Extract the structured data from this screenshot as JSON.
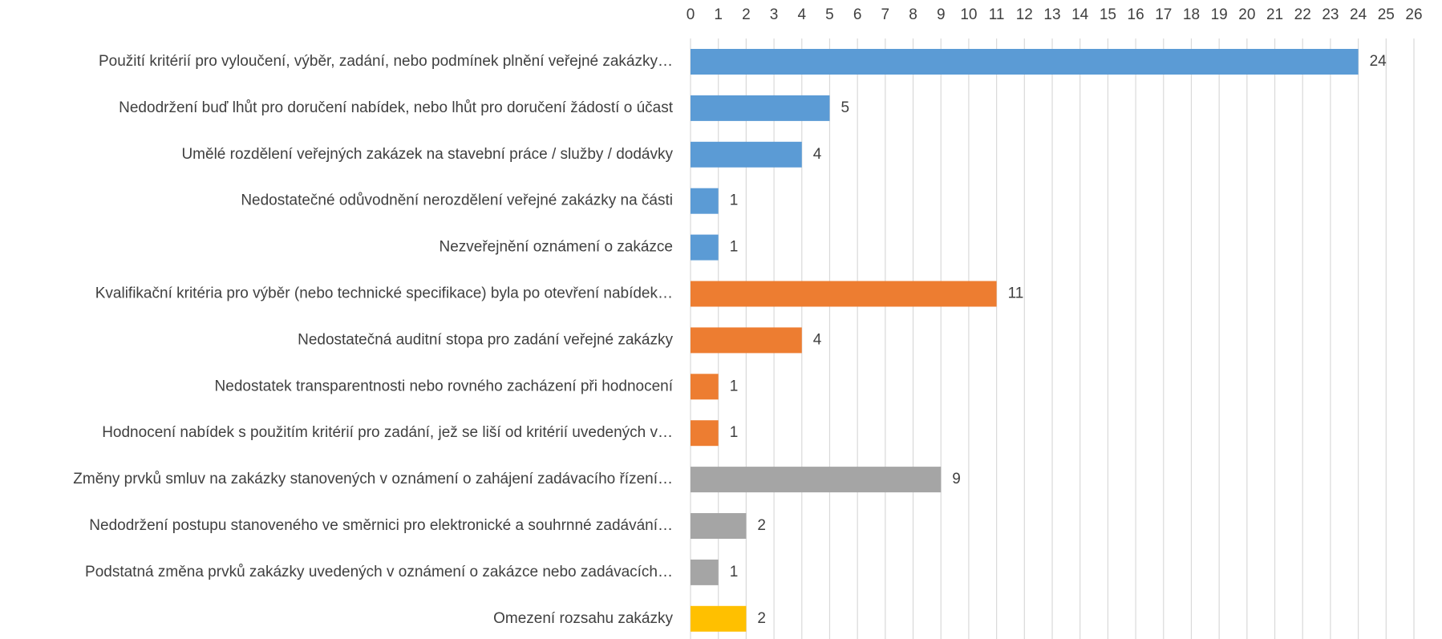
{
  "chart_data": {
    "type": "bar",
    "orientation": "horizontal",
    "categories": [
      "Použití kritérií pro vyloučení, výběr, zadání, nebo podmínek plnění veřejné zakázky…",
      "Nedodržení buď lhůt pro doručení nabídek, nebo lhůt pro doručení žádostí o účast",
      "Umělé rozdělení veřejných zakázek na stavební práce / služby / dodávky",
      "Nedostatečné odůvodnění nerozdělení veřejné zakázky na části",
      "Nezveřejnění oznámení o zakázce",
      "Kvalifikační kritéria pro výběr (nebo technické specifikace) byla po otevření nabídek…",
      "Nedostatečná auditní stopa pro zadání veřejné zakázky",
      "Nedostatek transparentnosti nebo rovného zacházení při hodnocení",
      "Hodnocení nabídek s použitím kritérií pro zadání, jež se liší od kritérií uvedených v…",
      "Změny prvků smluv na zakázky stanovených v oznámení o zahájení zadávacího řízení…",
      "Nedodržení postupu stanoveného ve směrnici pro elektronické a souhrnné zadávání…",
      "Podstatná změna prvků zakázky uvedených v oznámení o zakázce nebo zadávacích…",
      "Omezení rozsahu zakázky"
    ],
    "values": [
      24,
      5,
      4,
      1,
      1,
      11,
      4,
      1,
      1,
      9,
      2,
      1,
      2
    ],
    "colors": [
      "#5b9bd5",
      "#5b9bd5",
      "#5b9bd5",
      "#5b9bd5",
      "#5b9bd5",
      "#ed7d31",
      "#ed7d31",
      "#ed7d31",
      "#ed7d31",
      "#a5a5a5",
      "#a5a5a5",
      "#a5a5a5",
      "#ffc000"
    ],
    "xlim": [
      0,
      26
    ],
    "xticks": [
      0,
      1,
      2,
      3,
      4,
      5,
      6,
      7,
      8,
      9,
      10,
      11,
      12,
      13,
      14,
      15,
      16,
      17,
      18,
      19,
      20,
      21,
      22,
      23,
      24,
      25,
      26
    ],
    "grid": true
  }
}
